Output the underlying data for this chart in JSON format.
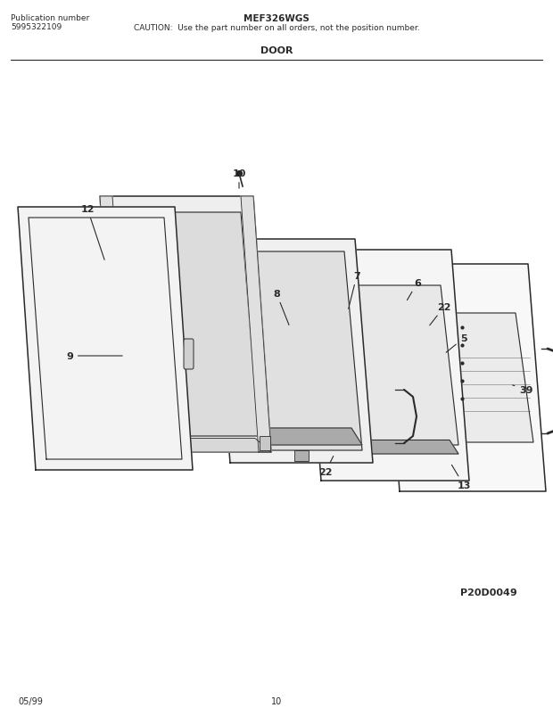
{
  "title_model": "MEF326WGS",
  "caution": "CAUTION:  Use the part number on all orders, not the position number.",
  "section": "DOOR",
  "pub_label": "Publication number",
  "pub_number": "5995322109",
  "date": "05/99",
  "page": "10",
  "diagram_id": "P20D0049",
  "bg_color": "#ffffff",
  "line_color": "#2a2a2a"
}
